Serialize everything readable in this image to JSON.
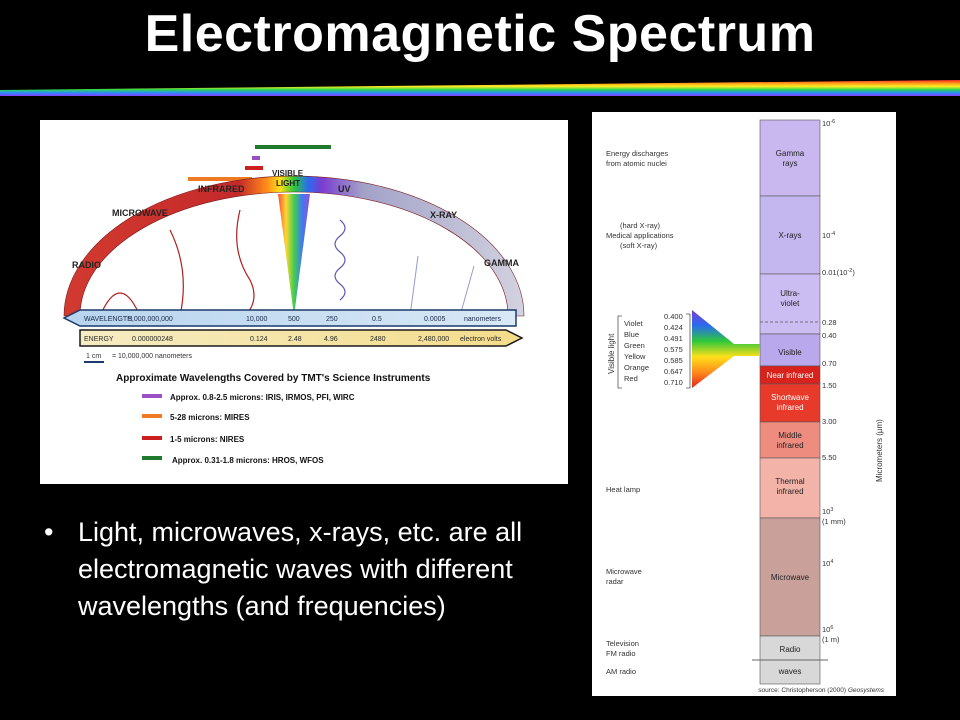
{
  "slide": {
    "title": "Electromagnetic Spectrum",
    "bullet_symbol": "•",
    "bullet": "Light, microwaves, x-rays, etc. are all electromagnetic waves with different wavelengths (and frequencies)"
  },
  "left_diagram": {
    "arc_labels": {
      "radio": "RADIO",
      "microwave": "MICROWAVE",
      "infrared": "INFRARED",
      "visible_1": "VISIBLE",
      "visible_2": "LIGHT",
      "uv": "UV",
      "xray": "X-RAY",
      "gamma": "GAMMA"
    },
    "wavelength_label": "WAVELENGTH",
    "wavelength_ticks": [
      "5,000,000,000",
      "10,000",
      "500",
      "250",
      "0.5",
      "0.0005"
    ],
    "wavelength_unit": "nanometers",
    "energy_label": "ENERGY",
    "energy_ticks": [
      "0.000000248",
      "0.124",
      "2.48",
      "4.96",
      "2480",
      "2,480,000"
    ],
    "energy_unit": "electron volts",
    "scale_note_a": "1 cm",
    "scale_note_b": "=    10,000,000 nanometers",
    "instruments_title": "Approximate Wavelengths Covered by TMT's Science Instruments",
    "instruments": [
      {
        "color": "#9b4fc4",
        "text": "Approx. 0.8-2.5 microns:  IRIS, IRMOS, PFI, WIRC"
      },
      {
        "color": "#f07a22",
        "text": "5-28 microns: MIRES"
      },
      {
        "color": "#cc1f1f",
        "text": "1-5 microns: NIRES"
      },
      {
        "color": "#1f7a2e",
        "text": "Approx. 0.31-1.8 microns: HROS, WFOS"
      }
    ]
  },
  "right_diagram": {
    "sources": [
      {
        "id": "atomic",
        "lines": [
          "Energy discharges",
          "from atomic nuclei"
        ]
      },
      {
        "id": "medical",
        "lines": [
          "(hard X-ray)",
          "Medical applications",
          "(soft X-ray)"
        ]
      },
      {
        "id": "heat",
        "lines": [
          "Heat lamp"
        ]
      },
      {
        "id": "microwave-radar",
        "lines": [
          "Microwave",
          "radar"
        ]
      },
      {
        "id": "tv",
        "lines": [
          "Television",
          "FM radio"
        ]
      },
      {
        "id": "am",
        "lines": [
          "AM radio"
        ]
      }
    ],
    "visible_light_label": "Visible light",
    "visible_colors": [
      "Violet",
      "Blue",
      "Green",
      "Yellow",
      "Orange",
      "Red"
    ],
    "visible_values": [
      "0.400",
      "0.424",
      "0.491",
      "0.575",
      "0.585",
      "0.647",
      "0.710"
    ],
    "bands": [
      {
        "id": "gamma",
        "lines": [
          "Gamma",
          "rays"
        ],
        "color": "#c9b8f0"
      },
      {
        "id": "xrays",
        "lines": [
          "X-rays"
        ],
        "color": "#c4b6ee"
      },
      {
        "id": "uv",
        "lines": [
          "Ultra-",
          "violet"
        ],
        "color": "#cbbcf2"
      },
      {
        "id": "visible",
        "lines": [
          "Visible"
        ],
        "color": "#b9a8ec"
      },
      {
        "id": "near-ir",
        "lines": [
          "Near infrared"
        ],
        "color": "#d9221c"
      },
      {
        "id": "shortwave-ir",
        "lines": [
          "Shortwave",
          "infrared"
        ],
        "color": "#e83a2a"
      },
      {
        "id": "middle-ir",
        "lines": [
          "Middle",
          "infrared"
        ],
        "color": "#ee8c80"
      },
      {
        "id": "thermal-ir",
        "lines": [
          "Thermal",
          "infrared"
        ],
        "color": "#f4b3a8"
      },
      {
        "id": "microwave",
        "lines": [
          "Microwave"
        ],
        "color": "#caa09a"
      },
      {
        "id": "radio",
        "lines": [
          "Radio",
          "waves"
        ],
        "color": "#d8d8d8"
      }
    ],
    "scale_labels": [
      "10",
      "0.01(10",
      "0.28",
      "0.40",
      "0.70",
      "1.50",
      "3.00",
      "5.50",
      "10",
      "(1 mm)",
      "10",
      "10",
      "(1 m)"
    ],
    "scale_exp": {
      "e1": "-6",
      "e2": "-4",
      "e3": "-2",
      "e4": "3",
      "e5": "4",
      "e6": "6"
    },
    "axis_label": "Micrometers (µm)",
    "source_prefix": "source: Christopherson (2000) ",
    "source_italic": "Geosystems"
  }
}
